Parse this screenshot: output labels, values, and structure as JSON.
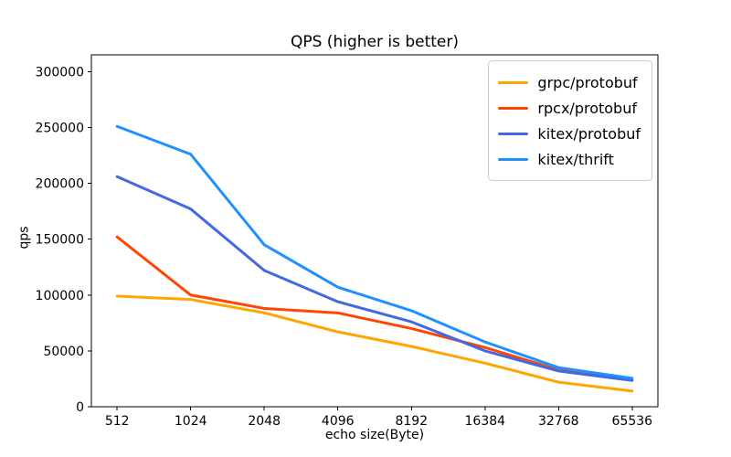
{
  "chart_data": {
    "type": "line",
    "title": "QPS (higher is better)",
    "xlabel": "echo size(Byte)",
    "ylabel": "qps",
    "categories": [
      "512",
      "1024",
      "2048",
      "4096",
      "8192",
      "16384",
      "32768",
      "65536"
    ],
    "x_note": "echo sizes doubling each step (log2-spaced categories)",
    "y_ticks": [
      0,
      50000,
      100000,
      150000,
      200000,
      250000,
      300000
    ],
    "ylim": [
      0,
      315000
    ],
    "grid": false,
    "legend_position": "upper right",
    "series": [
      {
        "name": "grpc/protobuf",
        "color": "#ffa500",
        "values": [
          99000,
          96000,
          84000,
          67000,
          54000,
          39000,
          22000,
          14000
        ]
      },
      {
        "name": "rpcx/protobuf",
        "color": "#ff4500",
        "values": [
          152000,
          100000,
          88000,
          84000,
          70000,
          53000,
          33000,
          24000
        ]
      },
      {
        "name": "kitex/protobuf",
        "color": "#4169e1",
        "values": [
          206000,
          177000,
          122000,
          94000,
          76000,
          50000,
          32000,
          23500
        ]
      },
      {
        "name": "kitex/thrift",
        "color": "#1e90ff",
        "values": [
          251000,
          226000,
          145000,
          107000,
          86000,
          58000,
          35000,
          25500
        ]
      }
    ]
  }
}
